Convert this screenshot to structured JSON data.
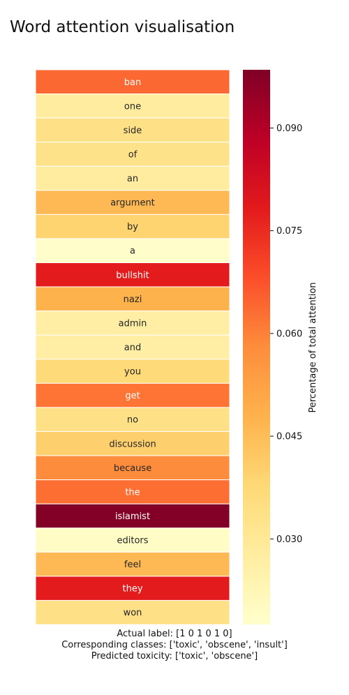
{
  "title": "Word attention visualisation",
  "captions": {
    "actual_label": "Actual label: [1 0 1 0 1 0]",
    "classes": "Corresponding classes: ['toxic', 'obscene', 'insult']",
    "predicted": "Predicted toxicity: ['toxic', 'obscene']"
  },
  "chart_data": {
    "type": "heatmap",
    "title": "Word attention visualisation",
    "colormap": "YlOrRd",
    "rows": [
      "ban",
      "one",
      "side",
      "of",
      "an",
      "argument",
      "by",
      "a",
      "bullshit",
      "nazi",
      "admin",
      "and",
      "you",
      "get",
      "no",
      "discussion",
      "because",
      "the",
      "islamist",
      "editors",
      "feel",
      "they",
      "won"
    ],
    "values": [
      0.064,
      0.028,
      0.034,
      0.033,
      0.028,
      0.046,
      0.039,
      0.018,
      0.078,
      0.048,
      0.027,
      0.027,
      0.037,
      0.062,
      0.034,
      0.04,
      0.058,
      0.063,
      0.098,
      0.019,
      0.046,
      0.078,
      0.034
    ],
    "colorbar": {
      "label": "Percentage of total attention",
      "vmin": 0.0175,
      "vmax": 0.0985,
      "ticks": [
        0.03,
        0.045,
        0.06,
        0.075,
        0.09
      ],
      "tick_labels": [
        "0.030",
        "0.045",
        "0.060",
        "0.075",
        "0.090"
      ]
    }
  }
}
